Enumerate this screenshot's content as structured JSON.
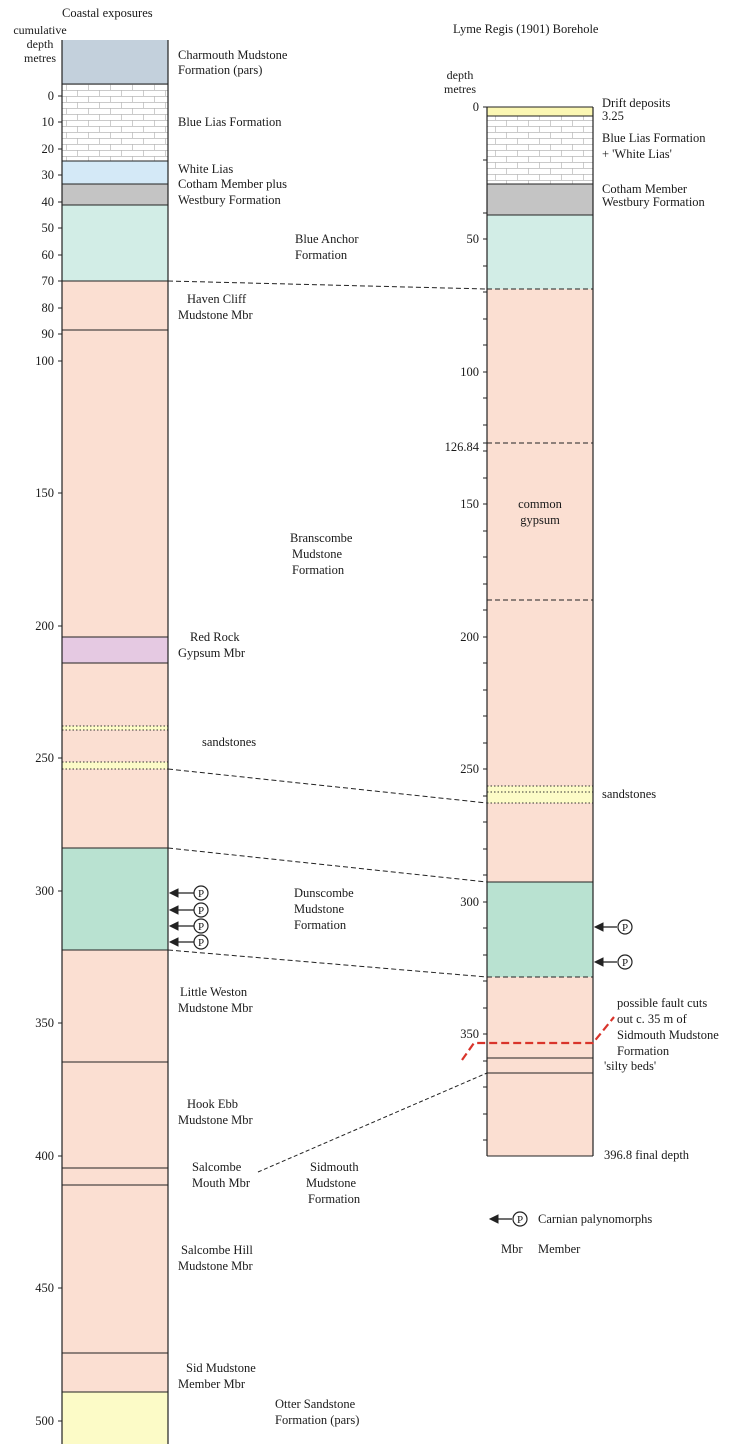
{
  "titles": {
    "left": "Coastal exposures",
    "right": "Lyme Regis (1901) Borehole"
  },
  "left_axis": {
    "label_lines": [
      "cumulative",
      "depth",
      "metres"
    ],
    "ticks": [
      "0",
      "10",
      "20",
      "30",
      "40",
      "50",
      "60",
      "70",
      "80",
      "90",
      "100",
      "150",
      "200",
      "250",
      "300",
      "350",
      "400",
      "450",
      "500"
    ]
  },
  "right_axis": {
    "label_lines": [
      "depth",
      "metres"
    ],
    "ticks": [
      "0",
      "50",
      "100",
      "126.84",
      "150",
      "200",
      "250",
      "300",
      "350"
    ]
  },
  "left_units": [
    {
      "lines": [
        "Charmouth Mudstone",
        "Formation (pars)"
      ]
    },
    {
      "lines": [
        "Blue Lias Formation"
      ]
    },
    {
      "lines": [
        "White Lias",
        "Cotham Member plus",
        "Westbury Formation"
      ]
    },
    {
      "lines": [
        "Blue Anchor",
        "Formation"
      ]
    },
    {
      "lines": [
        "Haven Cliff",
        "Mudstone Mbr"
      ]
    },
    {
      "lines": [
        "Branscombe",
        "Mudstone",
        "Formation"
      ]
    },
    {
      "lines": [
        "Red Rock",
        "Gypsum Mbr"
      ]
    },
    {
      "lines": [
        "sandstones"
      ]
    },
    {
      "lines": [
        "Dunscombe",
        "Mudstone",
        "Formation"
      ]
    },
    {
      "lines": [
        "Little Weston",
        "Mudstone Mbr"
      ]
    },
    {
      "lines": [
        "Hook Ebb",
        "Mudstone Mbr"
      ]
    },
    {
      "lines": [
        "Salcombe",
        "Mouth Mbr"
      ]
    },
    {
      "lines": [
        "Sidmouth",
        "Mudstone",
        "Formation"
      ]
    },
    {
      "lines": [
        "Salcombe Hill",
        "Mudstone Mbr"
      ]
    },
    {
      "lines": [
        "Sid Mudstone",
        "Member Mbr"
      ]
    },
    {
      "lines": [
        "Otter Sandstone",
        "Formation (pars)"
      ]
    }
  ],
  "right_units": [
    {
      "lines": [
        "Drift deposits",
        "3.25"
      ]
    },
    {
      "lines": [
        "Blue Lias Formation",
        "+ 'White Lias'"
      ]
    },
    {
      "lines": [
        "Cotham Member",
        "Westbury Formation"
      ]
    },
    {
      "lines": [
        "common",
        "gypsum"
      ]
    },
    {
      "lines": [
        "sandstones"
      ]
    },
    {
      "lines": [
        "possible fault cuts",
        "out c. 35 m of",
        "Sidmouth Mudstone",
        "Formation"
      ]
    },
    {
      "lines": [
        "'silty beds'"
      ]
    },
    {
      "lines": [
        "396.8 final depth"
      ]
    }
  ],
  "legend": {
    "items": [
      {
        "symbol": "P",
        "label": "Carnian palynomorphs"
      },
      {
        "symbol": "Mbr",
        "label": "Member"
      }
    ]
  },
  "palynomorph_symbol": "P",
  "colors": {
    "mudstone_red": "#fbdfd2",
    "blue_anchor": "#d2ede6",
    "dunscombe": "#b9e2d1",
    "gypsum": "#e5c9e2",
    "charmouth": "#c3d0dc",
    "white_lias": "#d4e9f7",
    "cotham": "#c4c4c4",
    "otter_sandstone": "#fcfbc7",
    "drift": "#fbf7b3",
    "fault": "#d9342b"
  }
}
